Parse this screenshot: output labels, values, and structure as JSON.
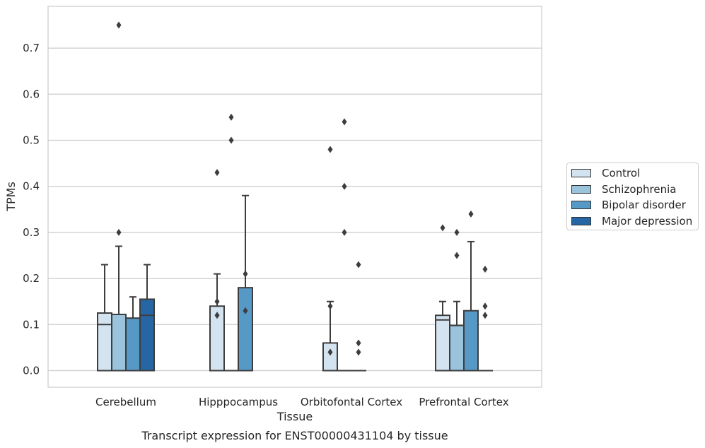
{
  "caption": "Transcript expression for ENST00000431104 by tissue",
  "chart_data": {
    "type": "box",
    "xlabel": "Tissue",
    "ylabel": "TPMs",
    "ylim": [
      -0.037,
      0.79
    ],
    "yticks": [
      "0.0",
      "0.1",
      "0.2",
      "0.3",
      "0.4",
      "0.5",
      "0.6",
      "0.7"
    ],
    "grid": "horizontal",
    "legend_position": "right",
    "categories": [
      "Cerebellum",
      "Hipppocampus",
      "Orbitofontal Cortex",
      "Prefrontal Cortex"
    ],
    "series": [
      {
        "name": "Control",
        "color": "#d4e3f0",
        "boxes": [
          {
            "q1": 0,
            "median": 0.1,
            "q3": 0.125,
            "whislo": 0,
            "whishi": 0.23,
            "fliers": []
          },
          {
            "q1": 0,
            "median": 0,
            "q3": 0.14,
            "whislo": 0,
            "whishi": 0.21,
            "fliers": [
              0.15,
              0.12,
              0.43
            ]
          },
          {
            "q1": 0,
            "median": 0,
            "q3": 0.06,
            "whislo": 0,
            "whishi": 0.15,
            "fliers": [
              0.14,
              0.04,
              0.48
            ]
          },
          {
            "q1": 0,
            "median": 0.11,
            "q3": 0.12,
            "whislo": 0,
            "whishi": 0.15,
            "fliers": [
              0.31
            ]
          }
        ]
      },
      {
        "name": "Schizophrenia",
        "color": "#9ac3dc",
        "boxes": [
          {
            "q1": 0,
            "median": 0,
            "q3": 0.122,
            "whislo": 0,
            "whishi": 0.27,
            "fliers": [
              0.75,
              0.3
            ]
          },
          {
            "q1": 0,
            "median": 0,
            "q3": 0,
            "whislo": 0,
            "whishi": 0,
            "fliers": [
              0.5,
              0.55
            ]
          },
          {
            "q1": 0,
            "median": 0,
            "q3": 0,
            "whislo": 0,
            "whishi": 0,
            "fliers": [
              0.54,
              0.4,
              0.3
            ]
          },
          {
            "q1": 0,
            "median": 0,
            "q3": 0.098,
            "whislo": 0,
            "whishi": 0.15,
            "fliers": [
              0.3,
              0.25
            ]
          }
        ]
      },
      {
        "name": "Bipolar disorder",
        "color": "#5799c6",
        "boxes": [
          {
            "q1": 0,
            "median": 0,
            "q3": 0.114,
            "whislo": 0,
            "whishi": 0.16,
            "fliers": []
          },
          {
            "q1": 0,
            "median": 0,
            "q3": 0.18,
            "whislo": 0,
            "whishi": 0.38,
            "fliers": [
              0.21,
              0.13
            ]
          },
          {
            "q1": 0,
            "median": 0,
            "q3": 0,
            "whislo": 0,
            "whishi": 0,
            "fliers": [
              0.23,
              0.06,
              0.04
            ]
          },
          {
            "q1": 0,
            "median": 0,
            "q3": 0.13,
            "whislo": 0,
            "whishi": 0.28,
            "fliers": [
              0.34
            ]
          }
        ]
      },
      {
        "name": "Major depression",
        "color": "#2666a5",
        "boxes": [
          {
            "q1": 0,
            "median": 0.12,
            "q3": 0.155,
            "whislo": 0,
            "whishi": 0.23,
            "fliers": []
          },
          null,
          null,
          {
            "q1": 0,
            "median": 0,
            "q3": 0,
            "whislo": 0,
            "whishi": 0,
            "fliers": [
              0.22,
              0.14,
              0.12
            ]
          }
        ]
      }
    ]
  }
}
